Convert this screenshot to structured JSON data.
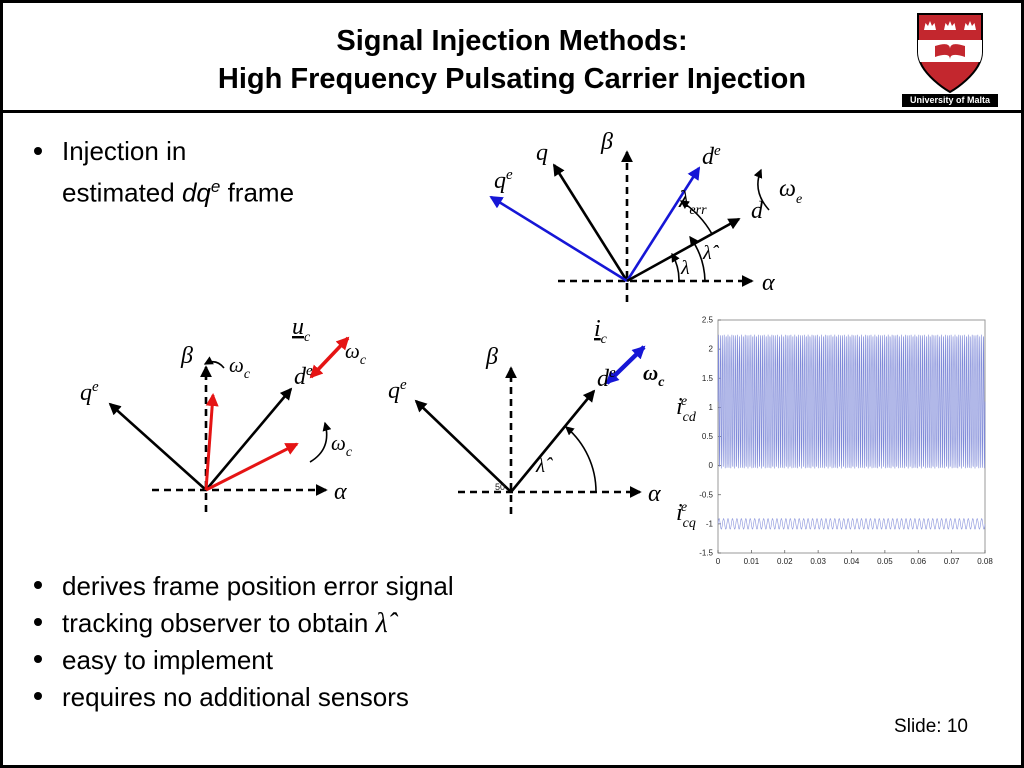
{
  "slide": {
    "title_line1": "Signal Injection Methods:",
    "title_line2": "High Frequency Pulsating Carrier Injection",
    "slide_number": "Slide: 10"
  },
  "logo": {
    "caption": "University of Malta"
  },
  "bullet_top": {
    "line1": "Injection in",
    "line2_pre": "estimated ",
    "math_main": "dq",
    "math_sup": "e",
    "line2_post": " frame"
  },
  "bullets_bottom": [
    {
      "text": "derives frame position error signal"
    },
    {
      "text": "tracking observer to obtain ",
      "math": "λ̂"
    },
    {
      "text": "easy to implement"
    },
    {
      "text": "requires no additional sensors"
    }
  ],
  "diagrams": {
    "top": {
      "alpha": "α",
      "beta": "β",
      "q": "q",
      "qe_main": "q",
      "qe_sup": "e",
      "de_main": "d",
      "de_sup": "e",
      "d": "d",
      "lambda_err_main": "λ",
      "lambda_err_sub": "err",
      "omega_e_main": "ω",
      "omega_e_sub": "e",
      "lambda": "λ",
      "lambda_hat": "λ̂"
    },
    "left": {
      "alpha": "α",
      "beta": "β",
      "qe_main": "q",
      "qe_sup": "e",
      "de_main": "d",
      "de_sup": "e",
      "uc_main": "u",
      "uc_sub": "c",
      "omega_c_main": "ω",
      "omega_c_sub": "c"
    },
    "middle": {
      "alpha": "α",
      "beta": "β",
      "qe_main": "q",
      "qe_sup": "e",
      "de_main": "d",
      "de_sup": "e",
      "ic_main": "i",
      "ic_sub": "c",
      "omega_c_main": "ω",
      "omega_c_sub": "c",
      "lambda_hat": "λ̂",
      "origin_tick": "50"
    }
  },
  "chart_data": {
    "type": "line",
    "title": "",
    "xlabel": "",
    "ylabel": "",
    "x_range": [
      0,
      0.08
    ],
    "ylim": [
      -1.5,
      2.5
    ],
    "x_ticks": [
      "0",
      "0.01",
      "0.02",
      "0.03",
      "0.04",
      "0.05",
      "0.06",
      "0.07",
      "0.08"
    ],
    "y_ticks": [
      "2.5",
      "2",
      "1.5",
      "1",
      "0.5",
      "0",
      "-0.5",
      "-1",
      "-1.5"
    ],
    "grid": false,
    "legend": false,
    "series": [
      {
        "name": "i_cd_e",
        "label_main": "i",
        "label_sub": "cd",
        "label_sup": "e",
        "offset": 1.1,
        "amplitude": 1.15,
        "cycles": 140,
        "color": "#7d88d8"
      },
      {
        "name": "i_cq_e",
        "label_main": "i",
        "label_sub": "cq",
        "label_sup": "e",
        "offset": -1.0,
        "amplitude": 0.09,
        "cycles": 60,
        "color": "#8a94dc"
      }
    ]
  }
}
